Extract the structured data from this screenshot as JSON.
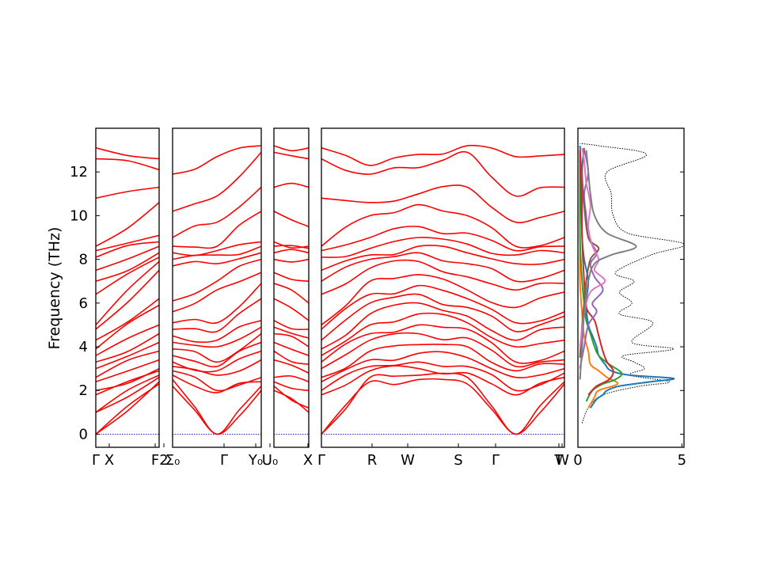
{
  "chart_data": {
    "type": "line",
    "title": "",
    "ylabel": "Frequency (THz)",
    "ylim": [
      -0.6,
      14.0
    ],
    "yticks": [
      "0",
      "2",
      "4",
      "6",
      "8",
      "10",
      "12"
    ],
    "grid": false,
    "band_color": "#ff0000",
    "zero_line_color": "#0000ff",
    "panels": [
      {
        "labels": [
          "Γ",
          "X",
          "F",
          "2"
        ],
        "start": [
          0,
          0,
          1.0,
          1.0,
          1.8,
          2.0,
          2.4,
          2.6,
          3.0,
          3.3,
          3.6,
          3.9,
          4.3,
          4.8,
          5.0,
          6.4,
          7.0,
          7.5,
          8.1,
          8.4,
          8.6,
          10.8,
          12.6,
          13.1
        ],
        "end": [
          2.3,
          2.4,
          2.6,
          2.7,
          2.9,
          3.0,
          3.4,
          3.8,
          4.2,
          4.6,
          5.0,
          5.9,
          6.2,
          7.5,
          7.9,
          8.1,
          8.3,
          8.6,
          8.8,
          9.1,
          10.6,
          11.3,
          12.1,
          12.6
        ]
      },
      {
        "labels": [
          "Σ₀",
          "Γ",
          "Y₀"
        ],
        "start": [
          2.2,
          2.5,
          2.7,
          2.9,
          3.1,
          3.3,
          3.6,
          3.9,
          4.2,
          4.5,
          4.8,
          5.1,
          5.6,
          6.1,
          7.7,
          8.0,
          8.3,
          8.6,
          9.0,
          10.2,
          11.9
        ],
        "mid": [
          0,
          0,
          1.9,
          2.0,
          2.7,
          2.9,
          3.1,
          3.3,
          4.0,
          4.3,
          4.7,
          5.1,
          6.6,
          7.0,
          7.8,
          8.2,
          8.4,
          8.6,
          9.7,
          10.9,
          12.7
        ],
        "end": [
          2.0,
          2.2,
          2.4,
          2.6,
          3.4,
          3.8,
          4.2,
          4.6,
          4.9,
          5.2,
          6.2,
          6.9,
          7.4,
          8.0,
          8.3,
          8.6,
          8.8,
          10.2,
          11.3,
          12.9,
          13.2
        ]
      },
      {
        "labels": [
          "U₀",
          "X"
        ],
        "start": [
          2.0,
          2.2,
          2.4,
          2.6,
          3.4,
          3.8,
          4.2,
          4.6,
          4.9,
          5.2,
          6.2,
          6.9,
          7.4,
          8.0,
          8.3,
          8.6,
          8.8,
          10.2,
          11.3,
          12.9,
          13.2
        ],
        "end": [
          1.0,
          1.2,
          2.0,
          2.4,
          2.8,
          3.2,
          3.6,
          4.0,
          4.4,
          4.8,
          5.2,
          6.0,
          7.0,
          8.0,
          8.3,
          8.5,
          8.6,
          9.5,
          11.3,
          12.6,
          13.1
        ]
      },
      {
        "labels": [
          "Γ",
          "R",
          "W",
          "S",
          "Γ",
          "T",
          "W"
        ],
        "nodes": [
          [
            0,
            0,
            1.8,
            2.0,
            2.4,
            2.6,
            3.0,
            3.3,
            3.6,
            3.9,
            4.3,
            4.8,
            5.0,
            6.4,
            7.0,
            7.5,
            8.1,
            8.4,
            8.6,
            10.8,
            12.6,
            13.1
          ],
          [
            2.4,
            2.6,
            2.9,
            3.1,
            3.4,
            3.8,
            4.3,
            4.6,
            5.0,
            5.5,
            6.0,
            6.4,
            7.0,
            7.6,
            8.0,
            8.2,
            8.5,
            9.0,
            10.0,
            10.6,
            11.9,
            12.3
          ],
          [
            2.5,
            2.7,
            3.0,
            3.3,
            3.7,
            4.1,
            4.6,
            5.0,
            5.5,
            6.0,
            6.4,
            6.8,
            7.3,
            7.9,
            8.3,
            8.6,
            9.0,
            9.5,
            10.5,
            11.0,
            12.2,
            12.8
          ],
          [
            2.3,
            2.6,
            2.8,
            3.1,
            3.5,
            4.0,
            4.4,
            4.8,
            5.1,
            5.4,
            5.8,
            6.2,
            6.6,
            7.2,
            7.8,
            8.3,
            8.7,
            9.2,
            10.0,
            11.3,
            12.9,
            13.2
          ],
          [
            0,
            0,
            1.8,
            2.0,
            2.6,
            2.9,
            3.1,
            3.3,
            4.0,
            4.3,
            4.7,
            5.1,
            5.8,
            6.6,
            7.0,
            7.8,
            8.2,
            8.4,
            8.6,
            9.7,
            10.9,
            12.7
          ],
          [
            2.3,
            2.4,
            2.6,
            2.8,
            3.0,
            3.2,
            3.4,
            3.8,
            4.3,
            4.9,
            5.4,
            5.6,
            6.5,
            6.9,
            7.5,
            8.0,
            8.3,
            8.6,
            9.0,
            10.2,
            11.3,
            12.8
          ]
        ]
      }
    ],
    "dos": {
      "xlim": [
        0,
        5.1
      ],
      "xticks": [
        "0",
        "5"
      ],
      "series": [
        {
          "color": "#1f77b4",
          "points": [
            [
              0.6,
              1.2
            ],
            [
              0.9,
              1.6
            ],
            [
              1.2,
              1.8
            ],
            [
              1.4,
              2.0
            ],
            [
              2.0,
              2.2
            ],
            [
              3.5,
              2.4
            ],
            [
              4.6,
              2.55
            ],
            [
              2.5,
              2.7
            ],
            [
              1.6,
              2.9
            ],
            [
              1.3,
              3.2
            ],
            [
              1.0,
              3.6
            ],
            [
              0.9,
              4.0
            ],
            [
              0.7,
              4.5
            ],
            [
              0.5,
              5.0
            ],
            [
              0.4,
              6.0
            ],
            [
              0.5,
              7.0
            ],
            [
              0.3,
              8.0
            ],
            [
              0.2,
              9.0
            ],
            [
              0.2,
              11.0
            ],
            [
              0.1,
              13.2
            ]
          ]
        },
        {
          "color": "#ff7f0e",
          "points": [
            [
              0.5,
              1.2
            ],
            [
              0.8,
              1.7
            ],
            [
              1.0,
              2.0
            ],
            [
              1.9,
              2.3
            ],
            [
              1.4,
              2.6
            ],
            [
              1.0,
              2.9
            ],
            [
              0.6,
              3.2
            ],
            [
              0.5,
              3.8
            ],
            [
              0.3,
              4.5
            ],
            [
              0.2,
              5.5
            ],
            [
              0.1,
              7.0
            ],
            [
              0.1,
              9.0
            ],
            [
              0.1,
              13.0
            ]
          ]
        },
        {
          "color": "#2ca02c",
          "points": [
            [
              0.4,
              1.5
            ],
            [
              0.7,
              2.0
            ],
            [
              1.2,
              2.3
            ],
            [
              1.8,
              2.5
            ],
            [
              2.1,
              2.8
            ],
            [
              1.5,
              3.2
            ],
            [
              1.0,
              3.6
            ],
            [
              0.8,
              4.0
            ],
            [
              0.6,
              4.6
            ],
            [
              0.4,
              5.2
            ],
            [
              0.3,
              6.0
            ],
            [
              0.2,
              7.0
            ],
            [
              0.1,
              9.0
            ],
            [
              0.1,
              13.0
            ]
          ]
        },
        {
          "color": "#d62728",
          "points": [
            [
              0.5,
              1.8
            ],
            [
              0.9,
              2.2
            ],
            [
              1.5,
              2.5
            ],
            [
              1.7,
              2.9
            ],
            [
              1.4,
              3.3
            ],
            [
              1.2,
              3.8
            ],
            [
              1.0,
              4.5
            ],
            [
              0.8,
              5.2
            ],
            [
              0.4,
              5.8
            ],
            [
              0.3,
              7.0
            ],
            [
              0.2,
              9.0
            ],
            [
              0.1,
              13.0
            ]
          ]
        },
        {
          "color": "#9467bd",
          "points": [
            [
              0.1,
              3.0
            ],
            [
              0.3,
              4.0
            ],
            [
              0.5,
              5.0
            ],
            [
              0.9,
              5.6
            ],
            [
              0.7,
              6.0
            ],
            [
              1.2,
              6.6
            ],
            [
              0.8,
              7.2
            ],
            [
              0.6,
              7.8
            ],
            [
              0.9,
              8.3
            ],
            [
              0.5,
              9.0
            ],
            [
              0.4,
              10.0
            ],
            [
              0.3,
              11.0
            ],
            [
              0.5,
              12.0
            ],
            [
              0.3,
              13.0
            ]
          ]
        },
        {
          "color": "#8c564b",
          "points": [
            [
              0.1,
              3.5
            ],
            [
              0.2,
              5.0
            ],
            [
              0.3,
              6.0
            ],
            [
              0.4,
              7.0
            ],
            [
              0.6,
              8.0
            ],
            [
              1.0,
              8.5
            ],
            [
              0.5,
              9.0
            ],
            [
              0.3,
              10.5
            ],
            [
              0.2,
              12.0
            ],
            [
              0.3,
              13.1
            ]
          ]
        },
        {
          "color": "#e377c2",
          "points": [
            [
              0.1,
              4.0
            ],
            [
              0.3,
              5.5
            ],
            [
              0.6,
              6.5
            ],
            [
              1.3,
              7.0
            ],
            [
              0.8,
              7.5
            ],
            [
              1.0,
              8.0
            ],
            [
              0.7,
              8.6
            ],
            [
              0.5,
              9.5
            ],
            [
              0.6,
              10.5
            ],
            [
              0.4,
              11.5
            ],
            [
              0.3,
              12.5
            ],
            [
              0.2,
              13.1
            ]
          ]
        },
        {
          "color": "#7f7f7f",
          "points": [
            [
              0.1,
              2.5
            ],
            [
              0.2,
              4.0
            ],
            [
              0.3,
              5.5
            ],
            [
              0.5,
              7.0
            ],
            [
              0.8,
              7.8
            ],
            [
              1.6,
              8.2
            ],
            [
              2.8,
              8.6
            ],
            [
              1.4,
              9.2
            ],
            [
              0.8,
              10.0
            ],
            [
              0.6,
              11.0
            ],
            [
              0.5,
              12.0
            ],
            [
              0.4,
              13.0
            ]
          ]
        }
      ],
      "total": {
        "color": "#000000",
        "points": [
          [
            0.2,
            0.5
          ],
          [
            0.5,
            1.2
          ],
          [
            1.2,
            1.8
          ],
          [
            3.0,
            2.2
          ],
          [
            4.4,
            2.4
          ],
          [
            2.5,
            2.7
          ],
          [
            3.2,
            3.0
          ],
          [
            2.7,
            3.3
          ],
          [
            2.2,
            3.6
          ],
          [
            4.6,
            3.9
          ],
          [
            2.6,
            4.2
          ],
          [
            3.6,
            5.1
          ],
          [
            2.0,
            5.5
          ],
          [
            2.6,
            6.0
          ],
          [
            2.0,
            6.5
          ],
          [
            2.7,
            7.0
          ],
          [
            1.8,
            7.4
          ],
          [
            3.5,
            8.2
          ],
          [
            5.1,
            8.7
          ],
          [
            2.4,
            9.2
          ],
          [
            1.7,
            10.0
          ],
          [
            1.6,
            11.0
          ],
          [
            1.4,
            12.0
          ],
          [
            3.3,
            12.8
          ],
          [
            1.0,
            13.2
          ],
          [
            0.1,
            13.3
          ]
        ]
      }
    }
  }
}
